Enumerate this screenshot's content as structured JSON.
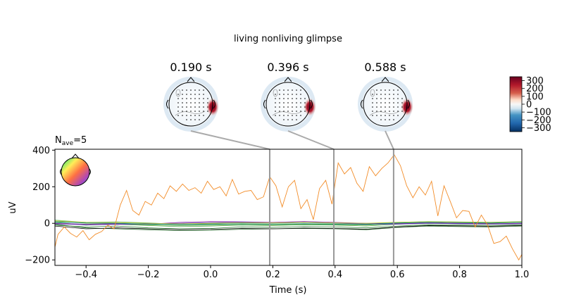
{
  "chart_data": {
    "type": "line",
    "title": "living nonliving glimpse",
    "nave_label": "N",
    "nave_sub": "ave",
    "nave_value": "=5",
    "xlabel": "Time (s)",
    "ylabel": "uV",
    "xlim": [
      -0.5,
      1.0
    ],
    "ylim": [
      -230,
      405
    ],
    "xticks": [
      -0.4,
      -0.2,
      0.0,
      0.2,
      0.4,
      0.6,
      0.8,
      1.0
    ],
    "xtick_labels": [
      "−0.4",
      "−0.2",
      "0.0",
      "0.2",
      "0.4",
      "0.6",
      "0.8",
      "1.0"
    ],
    "yticks": [
      -200,
      0,
      200,
      400
    ],
    "ytick_labels": [
      "−200",
      "0",
      "200",
      "400"
    ],
    "topomap_times": [
      0.19,
      0.396,
      0.588
    ],
    "topomap_labels": [
      "0.190 s",
      "0.396 s",
      "0.588 s"
    ],
    "colorbar": {
      "ticks": [
        300,
        200,
        100,
        0,
        -100,
        -200,
        -300
      ],
      "tick_labels": [
        "300",
        "200",
        "100",
        "0",
        "−100",
        "−200",
        "−300"
      ],
      "range": [
        -350,
        350
      ]
    },
    "series": [
      {
        "color": "#f28c28",
        "x": [
          -0.5,
          -0.49,
          -0.47,
          -0.45,
          -0.43,
          -0.41,
          -0.39,
          -0.37,
          -0.35,
          -0.33,
          -0.31,
          -0.29,
          -0.27,
          -0.25,
          -0.23,
          -0.21,
          -0.19,
          -0.17,
          -0.15,
          -0.13,
          -0.11,
          -0.09,
          -0.07,
          -0.05,
          -0.03,
          -0.01,
          0.01,
          0.03,
          0.05,
          0.07,
          0.09,
          0.11,
          0.13,
          0.15,
          0.17,
          0.19,
          0.21,
          0.23,
          0.25,
          0.27,
          0.29,
          0.31,
          0.33,
          0.35,
          0.37,
          0.39,
          0.41,
          0.43,
          0.45,
          0.47,
          0.49,
          0.51,
          0.53,
          0.55,
          0.57,
          0.59,
          0.61,
          0.63,
          0.65,
          0.67,
          0.69,
          0.71,
          0.73,
          0.75,
          0.77,
          0.79,
          0.81,
          0.83,
          0.85,
          0.87,
          0.89,
          0.91,
          0.93,
          0.95,
          0.97,
          0.99,
          1.0
        ],
        "y": [
          -130,
          -60,
          -20,
          -55,
          -75,
          -40,
          -90,
          -60,
          -45,
          -10,
          -30,
          100,
          180,
          70,
          45,
          120,
          100,
          165,
          135,
          205,
          175,
          215,
          180,
          195,
          165,
          230,
          185,
          200,
          150,
          240,
          160,
          175,
          180,
          130,
          145,
          255,
          205,
          90,
          200,
          235,
          80,
          130,
          20,
          190,
          235,
          105,
          330,
          270,
          305,
          220,
          175,
          310,
          260,
          300,
          330,
          375,
          315,
          205,
          140,
          200,
          155,
          230,
          40,
          205,
          120,
          30,
          70,
          65,
          -20,
          45,
          -10,
          -110,
          -100,
          -70,
          -140,
          -200,
          -170
        ]
      },
      {
        "color": "#2e7d32",
        "x": [
          -0.5,
          -0.4,
          -0.3,
          -0.2,
          -0.1,
          0.0,
          0.1,
          0.2,
          0.3,
          0.4,
          0.5,
          0.6,
          0.7,
          0.8,
          0.9,
          1.0
        ],
        "y": [
          -10,
          -20,
          -15,
          -25,
          -30,
          -28,
          -20,
          -22,
          -18,
          -20,
          -25,
          -15,
          -8,
          -10,
          -12,
          -8
        ]
      },
      {
        "color": "#43a047",
        "x": [
          -0.5,
          -0.4,
          -0.3,
          -0.2,
          -0.1,
          0.0,
          0.1,
          0.2,
          0.3,
          0.4,
          0.5,
          0.6,
          0.7,
          0.8,
          0.9,
          1.0
        ],
        "y": [
          5,
          -10,
          -5,
          -12,
          -18,
          -15,
          -10,
          -12,
          -8,
          -10,
          -15,
          -5,
          0,
          -2,
          -5,
          0
        ]
      },
      {
        "color": "#66bb6a",
        "x": [
          -0.5,
          -0.4,
          -0.3,
          -0.2,
          -0.1,
          0.0,
          0.1,
          0.2,
          0.3,
          0.4,
          0.5,
          0.6,
          0.7,
          0.8,
          0.9,
          1.0
        ],
        "y": [
          18,
          5,
          8,
          2,
          -5,
          -2,
          2,
          0,
          4,
          0,
          -3,
          5,
          10,
          8,
          6,
          10
        ]
      },
      {
        "color": "#7cb342",
        "x": [
          -0.5,
          -0.4,
          -0.3,
          -0.2,
          -0.1,
          0.0,
          0.1,
          0.2,
          0.3,
          0.4,
          0.5,
          0.6,
          0.7,
          0.8,
          0.9,
          1.0
        ],
        "y": [
          12,
          0,
          -2,
          -8,
          -12,
          -10,
          -5,
          -8,
          -4,
          -6,
          -10,
          0,
          4,
          2,
          0,
          5
        ]
      },
      {
        "color": "#1b5e20",
        "x": [
          -0.5,
          -0.4,
          -0.3,
          -0.2,
          -0.1,
          0.0,
          0.1,
          0.2,
          0.3,
          0.4,
          0.5,
          0.6,
          0.7,
          0.8,
          0.9,
          1.0
        ],
        "y": [
          -5,
          -25,
          -30,
          -35,
          -40,
          -38,
          -32,
          -30,
          -28,
          -30,
          -35,
          -22,
          -15,
          -18,
          -20,
          -15
        ]
      },
      {
        "color": "#8e24aa",
        "x": [
          -0.5,
          -0.4,
          -0.3,
          -0.2,
          -0.1,
          0.0,
          0.1,
          0.2,
          0.3,
          0.4,
          0.5,
          0.6,
          0.7,
          0.8,
          0.9,
          1.0
        ],
        "y": [
          0,
          -5,
          -2,
          -5,
          5,
          10,
          8,
          5,
          10,
          5,
          0,
          -2,
          2,
          0,
          -2,
          0
        ]
      },
      {
        "color": "#5e35b1",
        "x": [
          -0.5,
          -0.4,
          -0.3,
          -0.2,
          -0.1,
          0.0,
          0.1,
          0.2,
          0.3,
          0.4,
          0.5,
          0.6,
          0.7,
          0.8,
          0.9,
          1.0
        ],
        "y": [
          -2,
          -8,
          -6,
          -2,
          0,
          4,
          6,
          2,
          6,
          2,
          -4,
          -4,
          0,
          -2,
          -4,
          -2
        ]
      },
      {
        "color": "#00897b",
        "x": [
          -0.5,
          -0.4,
          -0.3,
          -0.2,
          -0.1,
          0.0,
          0.1,
          0.2,
          0.3,
          0.4,
          0.5,
          0.6,
          0.7,
          0.8,
          0.9,
          1.0
        ],
        "y": [
          8,
          2,
          0,
          -4,
          -8,
          -6,
          -3,
          -5,
          -2,
          -4,
          -6,
          2,
          6,
          4,
          2,
          6
        ]
      },
      {
        "color": "#c0ca33",
        "x": [
          -0.5,
          -0.4,
          -0.3,
          -0.2,
          -0.1,
          0.0,
          0.1,
          0.2,
          0.3,
          0.4,
          0.5,
          0.6,
          0.7,
          0.8,
          0.9,
          1.0
        ],
        "y": [
          14,
          6,
          4,
          0,
          -3,
          0,
          3,
          2,
          5,
          2,
          0,
          6,
          9,
          7,
          5,
          9
        ]
      },
      {
        "color": "#000000",
        "x": [
          -0.5,
          -0.4,
          -0.3,
          -0.2,
          -0.1,
          0.0,
          0.1,
          0.2,
          0.3,
          0.4,
          0.5,
          0.6,
          0.7,
          0.8,
          0.9,
          1.0
        ],
        "y": [
          -15,
          -30,
          -25,
          -30,
          -34,
          -32,
          -28,
          -30,
          -26,
          -28,
          -32,
          -20,
          -12,
          -14,
          -16,
          -12
        ]
      }
    ]
  }
}
